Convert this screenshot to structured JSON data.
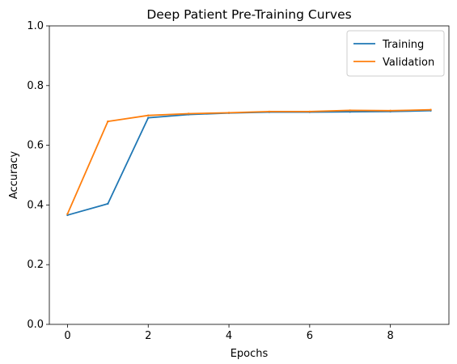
{
  "chart_data": {
    "type": "line",
    "title": "Deep Patient Pre-Training Curves",
    "xlabel": "Epochs",
    "ylabel": "Accuracy",
    "xlim": [
      -0.45,
      9.45
    ],
    "ylim": [
      0.0,
      1.0
    ],
    "x_ticks": [
      0,
      2,
      4,
      6,
      8
    ],
    "y_ticks": [
      0.0,
      0.2,
      0.4,
      0.6,
      0.8,
      1.0
    ],
    "x_tick_labels": [
      "0",
      "2",
      "4",
      "6",
      "8"
    ],
    "y_tick_labels": [
      "0.0",
      "0.2",
      "0.4",
      "0.6",
      "0.8",
      "1.0"
    ],
    "grid": false,
    "legend": {
      "position": "upper-right",
      "entries": [
        "Training",
        "Validation"
      ]
    },
    "x": [
      0,
      1,
      2,
      3,
      4,
      5,
      6,
      7,
      8,
      9
    ],
    "series": [
      {
        "name": "Training",
        "color": "#1f77b4",
        "values": [
          0.366,
          0.404,
          0.692,
          0.703,
          0.708,
          0.711,
          0.711,
          0.712,
          0.713,
          0.716
        ]
      },
      {
        "name": "Validation",
        "color": "#ff7f0e",
        "values": [
          0.37,
          0.68,
          0.7,
          0.706,
          0.709,
          0.713,
          0.713,
          0.717,
          0.716,
          0.719
        ]
      }
    ]
  }
}
